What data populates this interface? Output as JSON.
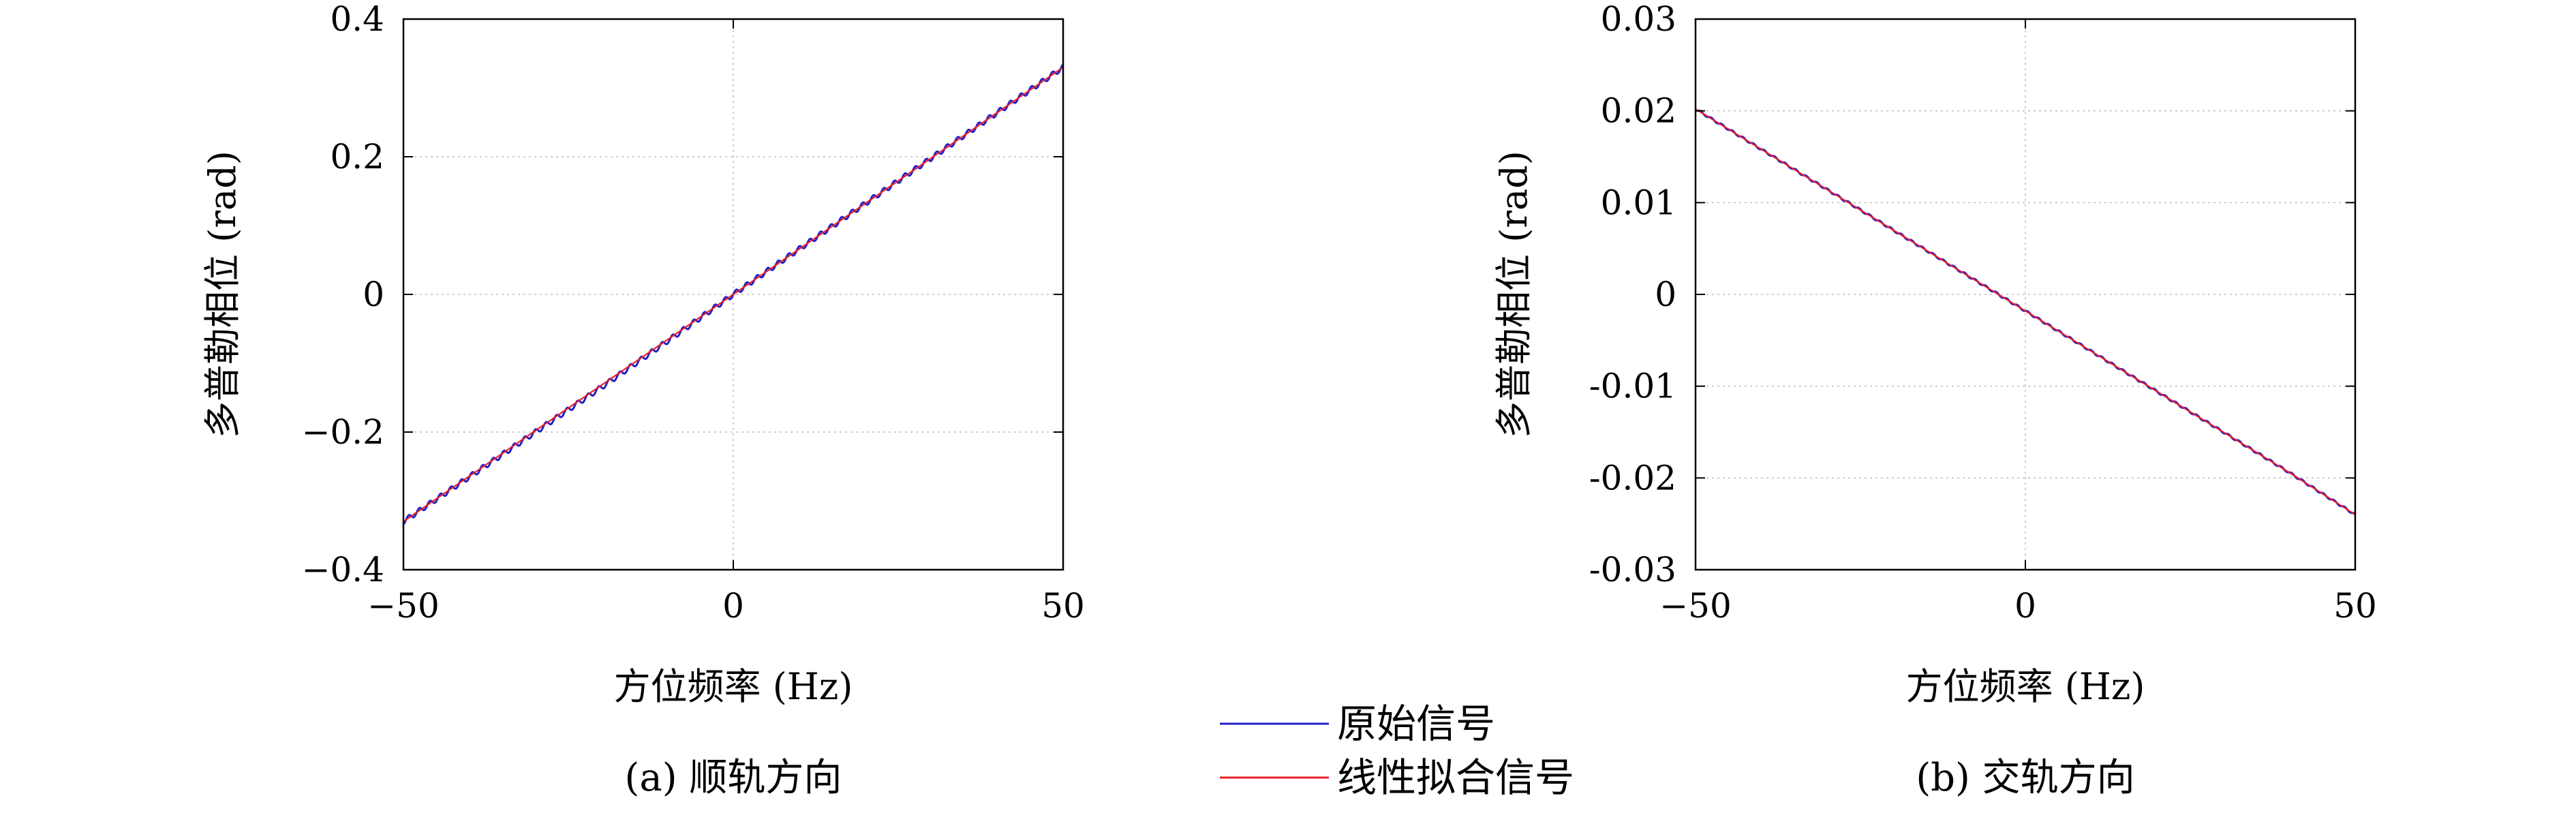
{
  "chart_data": [
    {
      "type": "line",
      "title": "",
      "caption": "(a) 顺轨方向",
      "xlabel": "方位频率 (Hz)",
      "ylabel": "多普勒相位 (rad)",
      "xlim": [
        -50,
        50
      ],
      "ylim": [
        -0.4,
        0.4
      ],
      "xticks": [
        -50,
        0,
        50
      ],
      "xtick_labels": [
        "−50",
        "0",
        "50"
      ],
      "yticks": [
        0.4,
        0.2,
        0,
        -0.2,
        -0.4
      ],
      "ytick_labels": [
        "0.4",
        "0.2",
        "0",
        "−0.2",
        "−0.4"
      ],
      "grid": true,
      "series": [
        {
          "name": "原始信号",
          "color": "#2020c8",
          "x": [
            -50,
            -40,
            -30,
            -20,
            -10,
            0,
            10,
            20,
            30,
            40,
            50
          ],
          "y": [
            -0.33,
            -0.265,
            -0.2,
            -0.135,
            -0.068,
            0.0,
            0.066,
            0.132,
            0.198,
            0.264,
            0.33
          ]
        },
        {
          "name": "线性拟合信号",
          "color": "#e8202a",
          "x": [
            -50,
            -40,
            -30,
            -20,
            -10,
            0,
            10,
            20,
            30,
            40,
            50
          ],
          "y": [
            -0.33,
            -0.264,
            -0.198,
            -0.132,
            -0.066,
            0.0,
            0.066,
            0.132,
            0.198,
            0.264,
            0.33
          ]
        }
      ]
    },
    {
      "type": "line",
      "title": "",
      "caption": "(b) 交轨方向",
      "xlabel": "方位频率 (Hz)",
      "ylabel": "多普勒相位 (rad)",
      "xlim": [
        -50,
        50
      ],
      "ylim": [
        -0.03,
        0.03
      ],
      "xticks": [
        -50,
        0,
        50
      ],
      "xtick_labels": [
        "−50",
        "0",
        "50"
      ],
      "yticks": [
        0.03,
        0.02,
        0.01,
        0,
        -0.01,
        -0.02,
        -0.03
      ],
      "ytick_labels": [
        "0.03",
        "0.02",
        "0.01",
        "0",
        "-0.01",
        "-0.02",
        "-0.03"
      ],
      "grid": true,
      "series": [
        {
          "name": "原始信号",
          "color": "#2020c8",
          "x": [
            -50,
            -40,
            -30,
            -20,
            -10,
            0,
            10,
            20,
            30,
            40,
            50
          ],
          "y": [
            0.0202,
            0.0158,
            0.0114,
            0.007,
            0.0026,
            -0.0018,
            -0.0062,
            -0.0106,
            -0.015,
            -0.0194,
            -0.024
          ]
        },
        {
          "name": "线性拟合信号",
          "color": "#e8202a",
          "x": [
            -50,
            -40,
            -30,
            -20,
            -10,
            0,
            10,
            20,
            30,
            40,
            50
          ],
          "y": [
            0.0202,
            0.0158,
            0.0114,
            0.007,
            0.0026,
            -0.0018,
            -0.0062,
            -0.0106,
            -0.015,
            -0.0194,
            -0.024
          ]
        }
      ]
    }
  ],
  "legend": {
    "placement": "bottom-center",
    "entries": [
      {
        "label": "原始信号",
        "color": "#2020c8"
      },
      {
        "label": "线性拟合信号",
        "color": "#e8202a"
      }
    ]
  }
}
